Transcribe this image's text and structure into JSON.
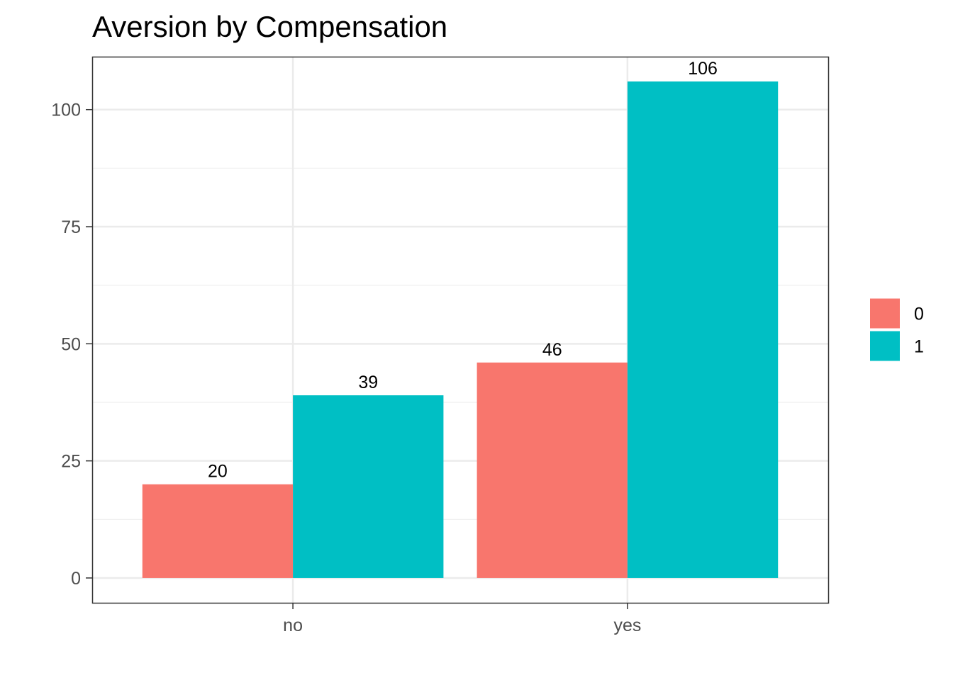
{
  "chart_data": {
    "type": "bar",
    "title": "Aversion by Compensation",
    "xlabel": "",
    "ylabel": "",
    "categories": [
      "no",
      "yes"
    ],
    "series": [
      {
        "name": "0",
        "color": "#F8766D",
        "values": [
          20,
          46
        ],
        "labels": [
          "20",
          "46"
        ]
      },
      {
        "name": "1",
        "color": "#00BFC4",
        "values": [
          39,
          106
        ],
        "labels": [
          "39",
          "106"
        ]
      }
    ],
    "ylim": [
      -5.3,
      111.3
    ],
    "yticks": [
      0,
      25,
      50,
      75,
      100
    ],
    "ytick_labels": [
      "0",
      "25",
      "50",
      "75",
      "100"
    ],
    "grid": true,
    "legend_position": "right"
  }
}
